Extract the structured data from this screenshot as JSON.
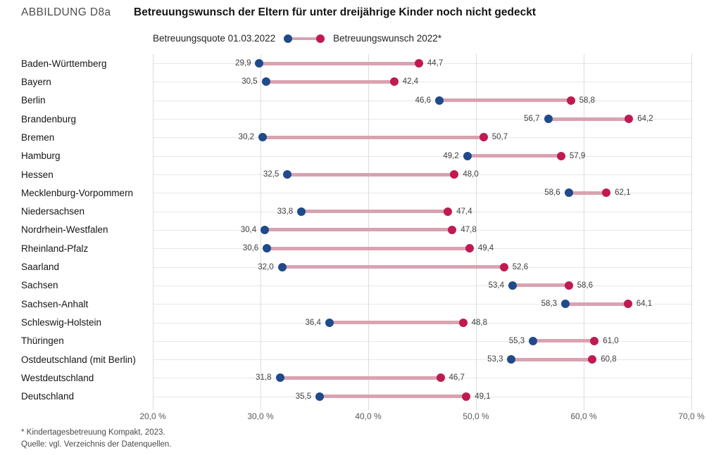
{
  "header": {
    "figure_label": "ABBILDUNG D8a",
    "title": "Betreuungswunsch der Eltern für unter dreijährige Kinder noch nicht gedeckt"
  },
  "legend": {
    "quote_label": "Betreuungsquote 01.03.2022",
    "wish_label": "Betreuungswunsch 2022*"
  },
  "colors": {
    "quote_dot": "#1f4a8c",
    "wish_dot": "#c01a50",
    "connector": "#d9a2b1"
  },
  "chart_data": {
    "type": "dumbbell",
    "title": "Betreuungswunsch der Eltern für unter dreijährige Kinder noch nicht gedeckt",
    "xlabel": "",
    "ylabel": "",
    "xlim": [
      20,
      70
    ],
    "grid": true,
    "legend_position": "top",
    "series": [
      {
        "name": "Betreuungsquote 01.03.2022",
        "color": "#1f4a8c"
      },
      {
        "name": "Betreuungswunsch 2022*",
        "color": "#c01a50"
      }
    ],
    "ticks": [
      {
        "value": 20,
        "label": "20,0 %"
      },
      {
        "value": 30,
        "label": "30,0 %"
      },
      {
        "value": 40,
        "label": "40,0 %"
      },
      {
        "value": 50,
        "label": "50,0 %"
      },
      {
        "value": 60,
        "label": "60,0 %"
      },
      {
        "value": 70,
        "label": "70,0 %"
      }
    ],
    "rows": [
      {
        "label": "Baden-Württemberg",
        "quote": 29.9,
        "wish": 44.7
      },
      {
        "label": "Bayern",
        "quote": 30.5,
        "wish": 42.4
      },
      {
        "label": "Berlin",
        "quote": 46.6,
        "wish": 58.8
      },
      {
        "label": "Brandenburg",
        "quote": 56.7,
        "wish": 64.2
      },
      {
        "label": "Bremen",
        "quote": 30.2,
        "wish": 50.7
      },
      {
        "label": "Hamburg",
        "quote": 49.2,
        "wish": 57.9
      },
      {
        "label": "Hessen",
        "quote": 32.5,
        "wish": 48.0
      },
      {
        "label": "Mecklenburg-Vorpommern",
        "quote": 58.6,
        "wish": 62.1
      },
      {
        "label": "Niedersachsen",
        "quote": 33.8,
        "wish": 47.4
      },
      {
        "label": "Nordrhein-Westfalen",
        "quote": 30.4,
        "wish": 47.8
      },
      {
        "label": "Rheinland-Pfalz",
        "quote": 30.6,
        "wish": 49.4
      },
      {
        "label": "Saarland",
        "quote": 32.0,
        "wish": 52.6
      },
      {
        "label": "Sachsen",
        "quote": 53.4,
        "wish": 58.6
      },
      {
        "label": "Sachsen-Anhalt",
        "quote": 58.3,
        "wish": 64.1
      },
      {
        "label": "Schleswig-Holstein",
        "quote": 36.4,
        "wish": 48.8
      },
      {
        "label": "Thüringen",
        "quote": 55.3,
        "wish": 61.0
      },
      {
        "label": "Ostdeutschland (mit Berlin)",
        "quote": 53.3,
        "wish": 60.8
      },
      {
        "label": "Westdeutschland",
        "quote": 31.8,
        "wish": 46.7
      },
      {
        "label": "Deutschland",
        "quote": 35.5,
        "wish": 49.1
      }
    ]
  },
  "footnotes": {
    "line1": "* Kindertagesbetreuung Kompakt, 2023.",
    "line2": "Quelle: vgl. Verzeichnis der Datenquellen."
  }
}
